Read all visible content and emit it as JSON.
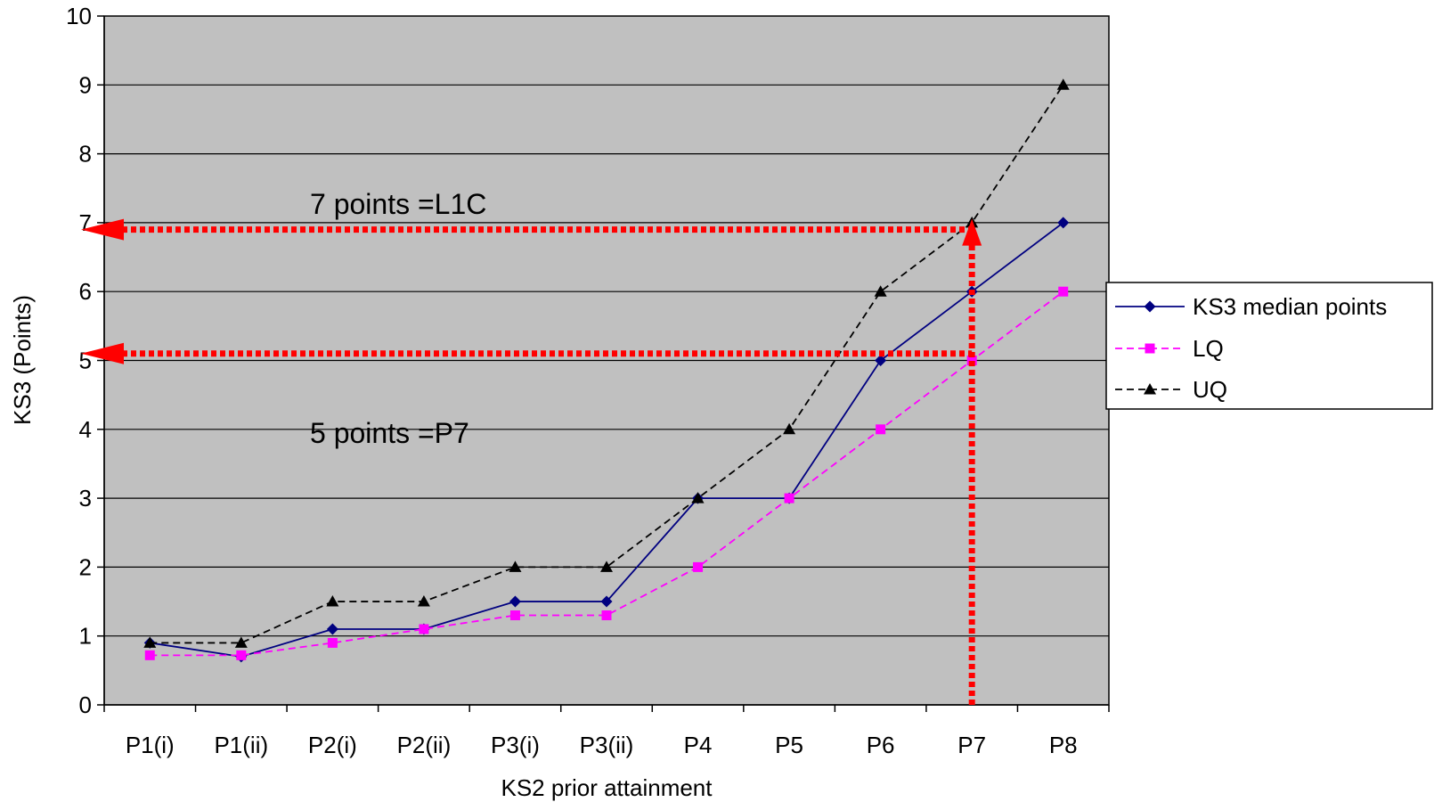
{
  "chart_data": {
    "type": "line",
    "categories": [
      "P1(i)",
      "P1(ii)",
      "P2(i)",
      "P2(ii)",
      "P3(i)",
      "P3(ii)",
      "P4",
      "P5",
      "P6",
      "P7",
      "P8"
    ],
    "series": [
      {
        "name": "KS3 median points",
        "values": [
          0.9,
          0.7,
          1.1,
          1.1,
          1.5,
          1.5,
          3,
          3,
          5,
          6,
          7
        ],
        "color": "#000080",
        "marker": "diamond",
        "dash": "solid"
      },
      {
        "name": "LQ",
        "values": [
          0.72,
          0.72,
          0.9,
          1.1,
          1.3,
          1.3,
          2,
          3,
          4,
          5,
          6
        ],
        "color": "#ff00ff",
        "marker": "square",
        "dash": "dashed"
      },
      {
        "name": "UQ",
        "values": [
          0.9,
          0.9,
          1.5,
          1.5,
          2,
          2,
          3,
          4,
          6,
          7,
          9
        ],
        "color": "#000000",
        "marker": "triangle",
        "dash": "dashed"
      }
    ],
    "xlabel": "KS2 prior attainment",
    "ylabel": "KS3 (Points)",
    "ylim": [
      0,
      10
    ],
    "yticks": [
      0,
      1,
      2,
      3,
      4,
      5,
      6,
      7,
      8,
      9,
      10
    ],
    "grid": true,
    "plot_background": "#c0c0c0",
    "legend": "right",
    "annotations": [
      {
        "text": "7 points =L1C"
      },
      {
        "text": "5 points =P7"
      }
    ],
    "reference_lines": {
      "color": "#ff0000",
      "horizontal_values": [
        6.9,
        5.1
      ],
      "vertical_category": "P7",
      "vertical_to_value": 6.9
    }
  }
}
